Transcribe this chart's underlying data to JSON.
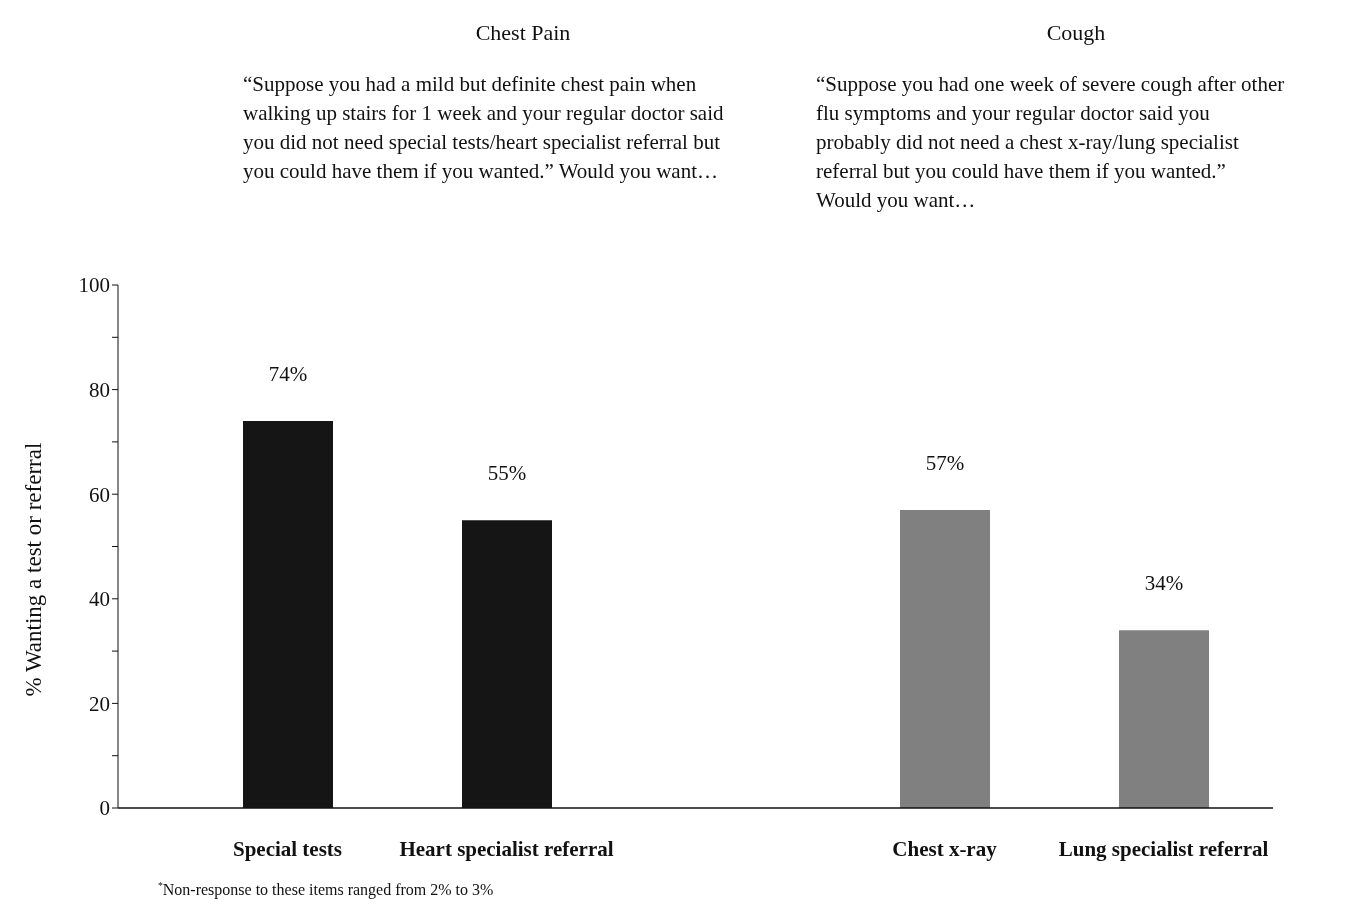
{
  "chart_data": {
    "type": "bar",
    "ylabel": "% Wanting a test or referral",
    "categories": [
      "Special  tests",
      "Heart specialist referral",
      null,
      "Chest x-ray",
      "Lung specialist referral"
    ],
    "values": [
      74,
      55,
      null,
      57,
      34
    ],
    "colors": [
      "#151515",
      "#151515",
      "#808080",
      "#808080",
      "#808080"
    ],
    "value_labels": [
      "74%",
      "55%",
      null,
      "57%",
      "34%"
    ],
    "ylim": [
      0,
      100
    ],
    "yticks": [
      0,
      {
        "value": 10,
        "label": null
      },
      20,
      {
        "value": 30,
        "label": null
      },
      40,
      {
        "value": 50,
        "label": null
      },
      60,
      {
        "value": 70,
        "label": null
      },
      80,
      {
        "value": 90,
        "label": null
      },
      100
    ],
    "annotations": [
      "Chest Pain",
      "Cough",
      "“Suppose you had a mild but definite chest pain when walking up stairs  for 1 week and your regular doctor said you did not need special tests/heart specialist referral  but you could have them if you wanted.”   Would you want…",
      "“Suppose you had one week of severe cough after other flu symptoms and your regular doctor said you probably did not need a chest x-ray/lung specialist referral but you could have them if you wanted.” Would you want…",
      "$^{*}$Non-response to these items ranged from 2% to 3%"
    ]
  }
}
